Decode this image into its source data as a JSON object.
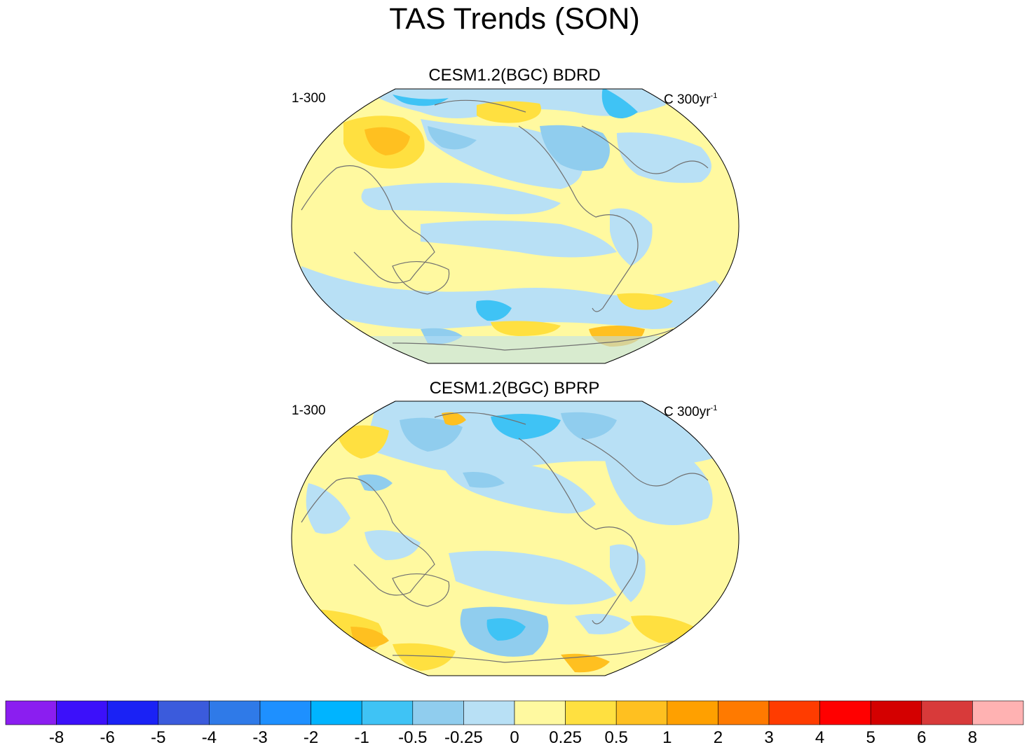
{
  "title": "TAS Trends (SON)",
  "panels": [
    {
      "title": "CESM1.2(BGC) BDRD",
      "left_label": "1-300",
      "right_label": "C 300yr",
      "right_label_sup": "-1"
    },
    {
      "title": "CESM1.2(BGC) BPRP",
      "left_label": "1-300",
      "right_label": "C 300yr",
      "right_label_sup": "-1"
    }
  ],
  "chart_data": {
    "type": "heatmap",
    "projection": "Winkel tripel (global, Pacific-centred)",
    "variable": "TAS trend",
    "colorbar": {
      "labels": [
        "-8",
        "-6",
        "-5",
        "-4",
        "-3",
        "-2",
        "-1",
        "-0.5",
        "-0.25",
        "0",
        "0.25",
        "0.5",
        "1",
        "2",
        "3",
        "4",
        "5",
        "6",
        "8"
      ],
      "colors": [
        "#8b1ef0",
        "#3c10fa",
        "#1a22f5",
        "#3b5bdc",
        "#2f7ae8",
        "#1e90ff",
        "#00b4ff",
        "#3fc3f5",
        "#90cdee",
        "#b8e0f5",
        "#fff9a0",
        "#ffe040",
        "#ffc020",
        "#ffa000",
        "#ff7a00",
        "#ff3c00",
        "#ff0000",
        "#d40000",
        "#d83a3a",
        "#ffb2b2"
      ]
    }
  }
}
